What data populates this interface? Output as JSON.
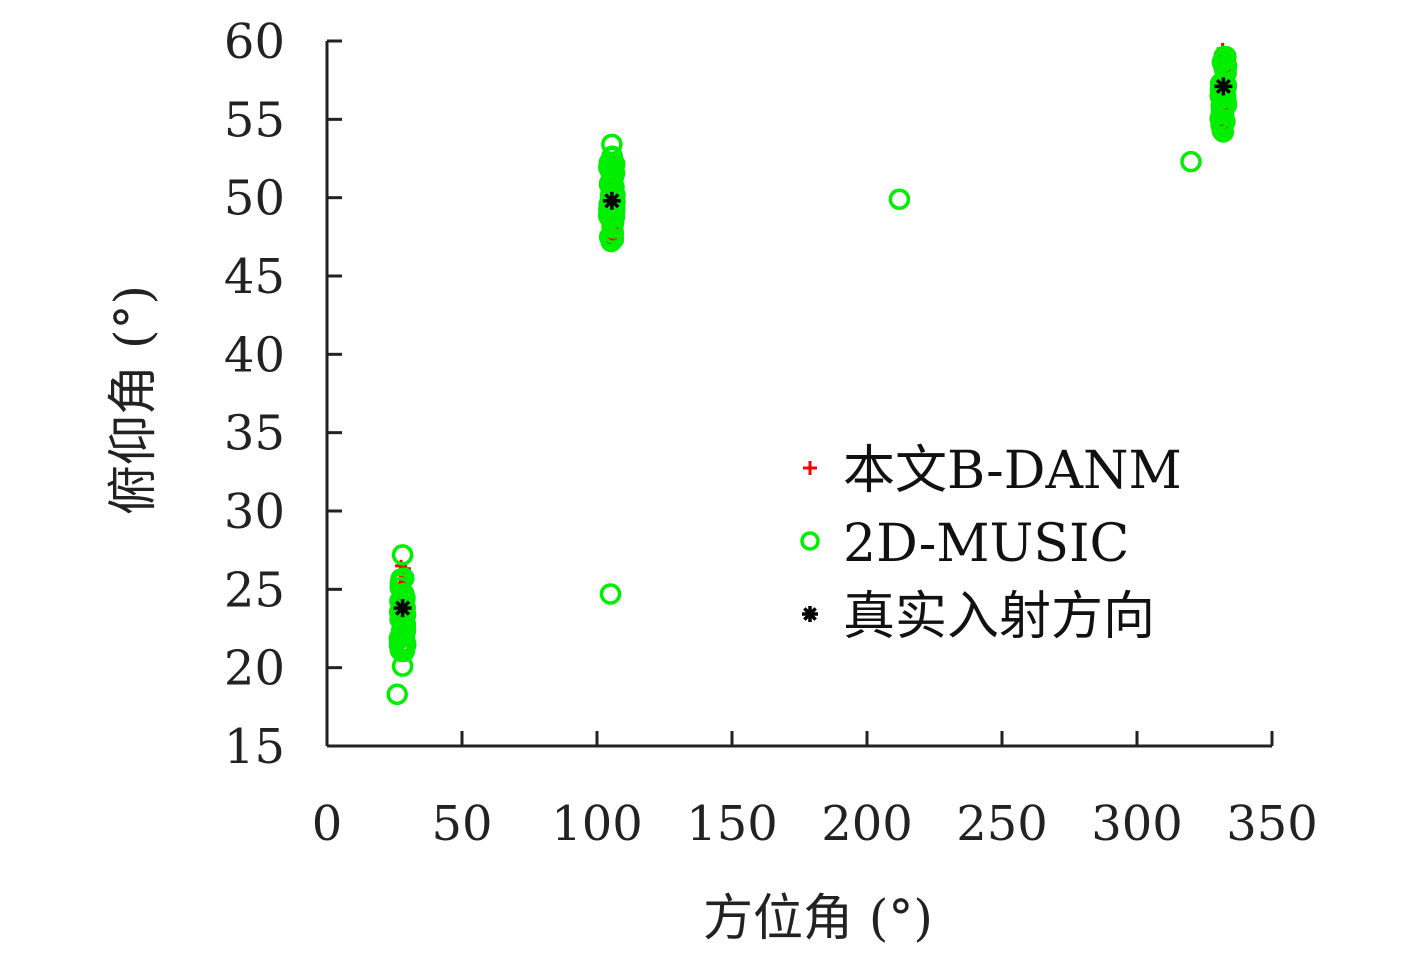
{
  "chart_data": {
    "type": "scatter",
    "xlabel": "方位角 (°)",
    "ylabel": "俯仰角 (°)",
    "xlim": [
      0,
      350
    ],
    "ylim": [
      15,
      60
    ],
    "xticks": [
      0,
      50,
      100,
      150,
      200,
      250,
      300,
      350
    ],
    "yticks": [
      15,
      20,
      25,
      30,
      35,
      40,
      45,
      50,
      55,
      60
    ],
    "grid": false,
    "legend": "center-right",
    "series": [
      {
        "name": "本文B-DANM",
        "marker": "plus",
        "color": "#ff0000",
        "clusters": [
          {
            "x": 28.0,
            "y_min": 21.5,
            "y_max": 26.5
          },
          {
            "x": 105.5,
            "y_min": 47.0,
            "y_max": 52.5
          },
          {
            "x": 332.0,
            "y_min": 54.0,
            "y_max": 59.5
          }
        ]
      },
      {
        "name": "2D-MUSIC",
        "marker": "circle",
        "color": "#00ee00",
        "clusters": [
          {
            "x": 28.0,
            "y_min": 21.0,
            "y_max": 26.2
          },
          {
            "x": 105.5,
            "y_min": 47.0,
            "y_max": 52.8
          },
          {
            "x": 332.0,
            "y_min": 54.2,
            "y_max": 59.2
          }
        ],
        "outliers": [
          {
            "x": 26.0,
            "y": 18.3
          },
          {
            "x": 28.0,
            "y": 20.1
          },
          {
            "x": 28.0,
            "y": 27.2
          },
          {
            "x": 105.5,
            "y": 53.4
          },
          {
            "x": 105.0,
            "y": 24.7
          },
          {
            "x": 212.0,
            "y": 49.9
          },
          {
            "x": 320.0,
            "y": 52.3
          }
        ]
      },
      {
        "name": "真实入射方向",
        "marker": "asterisk",
        "color": "#000000",
        "points": [
          {
            "x": 28.0,
            "y": 23.8
          },
          {
            "x": 105.5,
            "y": 49.8
          },
          {
            "x": 332.0,
            "y": 57.1
          }
        ]
      }
    ]
  }
}
